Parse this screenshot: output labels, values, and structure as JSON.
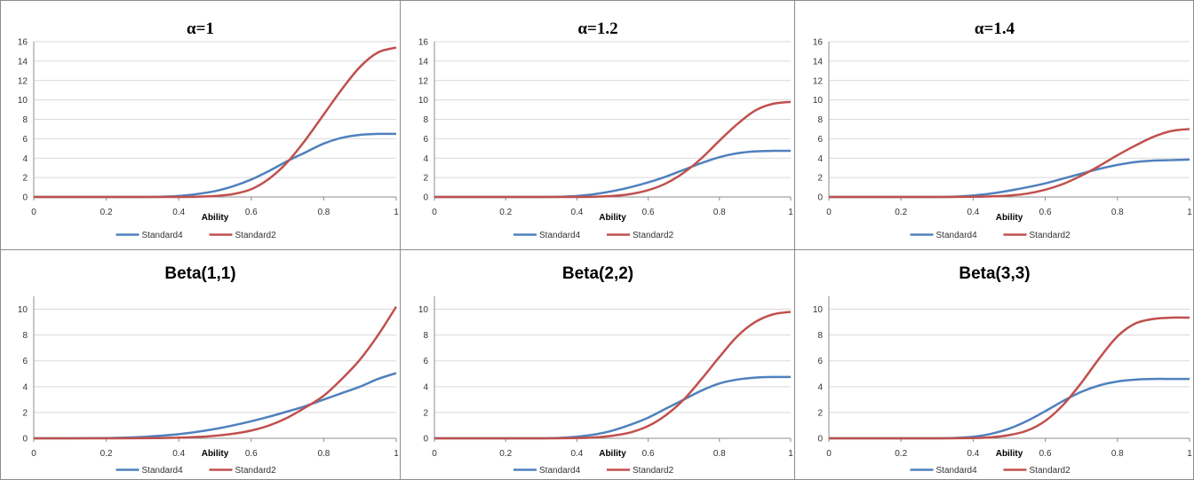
{
  "chart_data": [
    {
      "type": "line",
      "title": "α=1",
      "xlabel": "Ability",
      "ylabel": "",
      "xlim": [
        0,
        1
      ],
      "ylim": [
        0,
        16
      ],
      "xticks": [
        "0",
        "0.2",
        "0.4",
        "0.6",
        "0.8",
        "1"
      ],
      "yticks": [
        "0",
        "2",
        "4",
        "6",
        "8",
        "10",
        "12",
        "14",
        "16"
      ],
      "grid": true,
      "legend": "bottom",
      "series": [
        {
          "name": "Standard4",
          "color": "#4F81BD",
          "x": [
            0,
            0.1,
            0.2,
            0.3,
            0.35,
            0.4,
            0.45,
            0.5,
            0.55,
            0.6,
            0.65,
            0.7,
            0.75,
            0.8,
            0.85,
            0.9,
            0.95,
            1.0
          ],
          "y": [
            0,
            0,
            0,
            0,
            0.02,
            0.1,
            0.3,
            0.6,
            1.1,
            1.8,
            2.7,
            3.7,
            4.6,
            5.5,
            6.1,
            6.4,
            6.5,
            6.5
          ]
        },
        {
          "name": "Standard2",
          "color": "#C0504D",
          "x": [
            0,
            0.1,
            0.2,
            0.3,
            0.4,
            0.45,
            0.5,
            0.55,
            0.6,
            0.65,
            0.7,
            0.75,
            0.8,
            0.85,
            0.9,
            0.95,
            1.0
          ],
          "y": [
            0,
            0,
            0,
            0,
            0,
            0.02,
            0.1,
            0.3,
            0.8,
            1.9,
            3.6,
            5.9,
            8.5,
            11.1,
            13.4,
            14.9,
            15.4
          ]
        }
      ]
    },
    {
      "type": "line",
      "title": "α=1.2",
      "xlabel": "Ability",
      "ylabel": "",
      "xlim": [
        0,
        1
      ],
      "ylim": [
        0,
        16
      ],
      "xticks": [
        "0",
        "0.2",
        "0.4",
        "0.6",
        "0.8",
        "1"
      ],
      "yticks": [
        "0",
        "2",
        "4",
        "6",
        "8",
        "10",
        "12",
        "14",
        "16"
      ],
      "grid": true,
      "legend": "bottom",
      "series": [
        {
          "name": "Standard4",
          "color": "#4F81BD",
          "x": [
            0,
            0.1,
            0.2,
            0.3,
            0.35,
            0.4,
            0.45,
            0.5,
            0.55,
            0.6,
            0.65,
            0.7,
            0.75,
            0.8,
            0.85,
            0.9,
            0.95,
            1.0
          ],
          "y": [
            0,
            0,
            0,
            0,
            0.02,
            0.1,
            0.3,
            0.6,
            1.0,
            1.5,
            2.1,
            2.8,
            3.5,
            4.1,
            4.5,
            4.7,
            4.75,
            4.75
          ]
        },
        {
          "name": "Standard2",
          "color": "#C0504D",
          "x": [
            0,
            0.1,
            0.2,
            0.3,
            0.4,
            0.45,
            0.5,
            0.55,
            0.6,
            0.65,
            0.7,
            0.75,
            0.8,
            0.85,
            0.9,
            0.95,
            1.0
          ],
          "y": [
            0,
            0,
            0,
            0,
            0,
            0.02,
            0.1,
            0.3,
            0.7,
            1.4,
            2.5,
            4.0,
            5.8,
            7.5,
            8.9,
            9.6,
            9.8
          ]
        }
      ]
    },
    {
      "type": "line",
      "title": "α=1.4",
      "xlabel": "Ability",
      "ylabel": "",
      "xlim": [
        0,
        1
      ],
      "ylim": [
        0,
        16
      ],
      "xticks": [
        "0",
        "0.2",
        "0.4",
        "0.6",
        "0.8",
        "1"
      ],
      "yticks": [
        "0",
        "2",
        "4",
        "6",
        "8",
        "10",
        "12",
        "14",
        "16"
      ],
      "grid": true,
      "legend": "bottom",
      "series": [
        {
          "name": "Standard4",
          "color": "#4F81BD",
          "x": [
            0,
            0.1,
            0.2,
            0.3,
            0.35,
            0.4,
            0.45,
            0.5,
            0.55,
            0.6,
            0.65,
            0.7,
            0.75,
            0.8,
            0.85,
            0.9,
            0.95,
            1.0
          ],
          "y": [
            0,
            0,
            0,
            0,
            0.03,
            0.15,
            0.35,
            0.65,
            1.0,
            1.4,
            1.9,
            2.4,
            2.9,
            3.3,
            3.6,
            3.75,
            3.8,
            3.85
          ]
        },
        {
          "name": "Standard2",
          "color": "#C0504D",
          "x": [
            0,
            0.1,
            0.2,
            0.3,
            0.4,
            0.45,
            0.5,
            0.55,
            0.6,
            0.65,
            0.7,
            0.75,
            0.8,
            0.85,
            0.9,
            0.95,
            1.0
          ],
          "y": [
            0,
            0,
            0,
            0,
            0.02,
            0.06,
            0.15,
            0.35,
            0.75,
            1.35,
            2.2,
            3.2,
            4.3,
            5.3,
            6.2,
            6.8,
            7.0
          ]
        }
      ]
    },
    {
      "type": "line",
      "title": "Beta(1,1)",
      "xlabel": "Ability",
      "ylabel": "",
      "xlim": [
        0,
        1
      ],
      "ylim": [
        0,
        11
      ],
      "xticks": [
        "0",
        "0.2",
        "0.4",
        "0.6",
        "0.8",
        "1"
      ],
      "yticks": [
        "0",
        "2",
        "4",
        "6",
        "8",
        "10"
      ],
      "grid": true,
      "legend": "bottom",
      "series": [
        {
          "name": "Standard4",
          "color": "#4F81BD",
          "x": [
            0,
            0.1,
            0.2,
            0.25,
            0.3,
            0.35,
            0.4,
            0.45,
            0.5,
            0.55,
            0.6,
            0.65,
            0.7,
            0.75,
            0.8,
            0.85,
            0.9,
            0.95,
            1.0
          ],
          "y": [
            0,
            0,
            0.02,
            0.05,
            0.1,
            0.2,
            0.32,
            0.5,
            0.72,
            1.0,
            1.32,
            1.68,
            2.08,
            2.5,
            3.0,
            3.5,
            4.0,
            4.6,
            5.05
          ]
        },
        {
          "name": "Standard2",
          "color": "#C0504D",
          "x": [
            0,
            0.1,
            0.2,
            0.3,
            0.35,
            0.4,
            0.45,
            0.5,
            0.55,
            0.6,
            0.65,
            0.7,
            0.75,
            0.8,
            0.85,
            0.9,
            0.95,
            1.0
          ],
          "y": [
            0,
            0,
            0,
            0.01,
            0.02,
            0.05,
            0.1,
            0.2,
            0.35,
            0.6,
            1.0,
            1.6,
            2.4,
            3.3,
            4.6,
            6.1,
            8.0,
            10.2
          ]
        }
      ]
    },
    {
      "type": "line",
      "title": "Beta(2,2)",
      "xlabel": "Ability",
      "ylabel": "",
      "xlim": [
        0,
        1
      ],
      "ylim": [
        0,
        11
      ],
      "xticks": [
        "0",
        "0.2",
        "0.4",
        "0.6",
        "0.8",
        "1"
      ],
      "yticks": [
        "0",
        "2",
        "4",
        "6",
        "8",
        "10"
      ],
      "grid": true,
      "legend": "bottom",
      "series": [
        {
          "name": "Standard4",
          "color": "#4F81BD",
          "x": [
            0,
            0.1,
            0.2,
            0.3,
            0.35,
            0.4,
            0.45,
            0.5,
            0.55,
            0.6,
            0.65,
            0.7,
            0.75,
            0.8,
            0.85,
            0.9,
            0.95,
            1.0
          ],
          "y": [
            0,
            0,
            0,
            0,
            0.03,
            0.12,
            0.3,
            0.6,
            1.05,
            1.6,
            2.3,
            3.0,
            3.7,
            4.25,
            4.55,
            4.7,
            4.75,
            4.75
          ]
        },
        {
          "name": "Standard2",
          "color": "#C0504D",
          "x": [
            0,
            0.1,
            0.2,
            0.3,
            0.4,
            0.45,
            0.5,
            0.55,
            0.6,
            0.65,
            0.7,
            0.75,
            0.8,
            0.85,
            0.9,
            0.95,
            1.0
          ],
          "y": [
            0,
            0,
            0,
            0,
            0.02,
            0.07,
            0.2,
            0.45,
            0.95,
            1.8,
            3.0,
            4.6,
            6.3,
            7.9,
            9.0,
            9.6,
            9.8
          ]
        }
      ]
    },
    {
      "type": "line",
      "title": "Beta(3,3)",
      "xlabel": "Ability",
      "ylabel": "",
      "xlim": [
        0,
        1
      ],
      "ylim": [
        0,
        11
      ],
      "xticks": [
        "0",
        "0.2",
        "0.4",
        "0.6",
        "0.8",
        "1"
      ],
      "yticks": [
        "0",
        "2",
        "4",
        "6",
        "8",
        "10"
      ],
      "grid": true,
      "legend": "bottom",
      "series": [
        {
          "name": "Standard4",
          "color": "#4F81BD",
          "x": [
            0,
            0.1,
            0.2,
            0.3,
            0.35,
            0.4,
            0.45,
            0.5,
            0.55,
            0.6,
            0.65,
            0.7,
            0.75,
            0.8,
            0.85,
            0.9,
            0.95,
            1.0
          ],
          "y": [
            0,
            0,
            0,
            0,
            0.03,
            0.12,
            0.35,
            0.75,
            1.35,
            2.1,
            2.9,
            3.6,
            4.1,
            4.4,
            4.55,
            4.6,
            4.6,
            4.6
          ]
        },
        {
          "name": "Standard2",
          "color": "#C0504D",
          "x": [
            0,
            0.1,
            0.2,
            0.3,
            0.4,
            0.45,
            0.5,
            0.55,
            0.6,
            0.65,
            0.7,
            0.75,
            0.8,
            0.85,
            0.9,
            0.95,
            1.0
          ],
          "y": [
            0,
            0,
            0,
            0,
            0.02,
            0.08,
            0.25,
            0.6,
            1.35,
            2.6,
            4.3,
            6.2,
            7.9,
            8.9,
            9.25,
            9.35,
            9.35
          ]
        }
      ]
    }
  ]
}
